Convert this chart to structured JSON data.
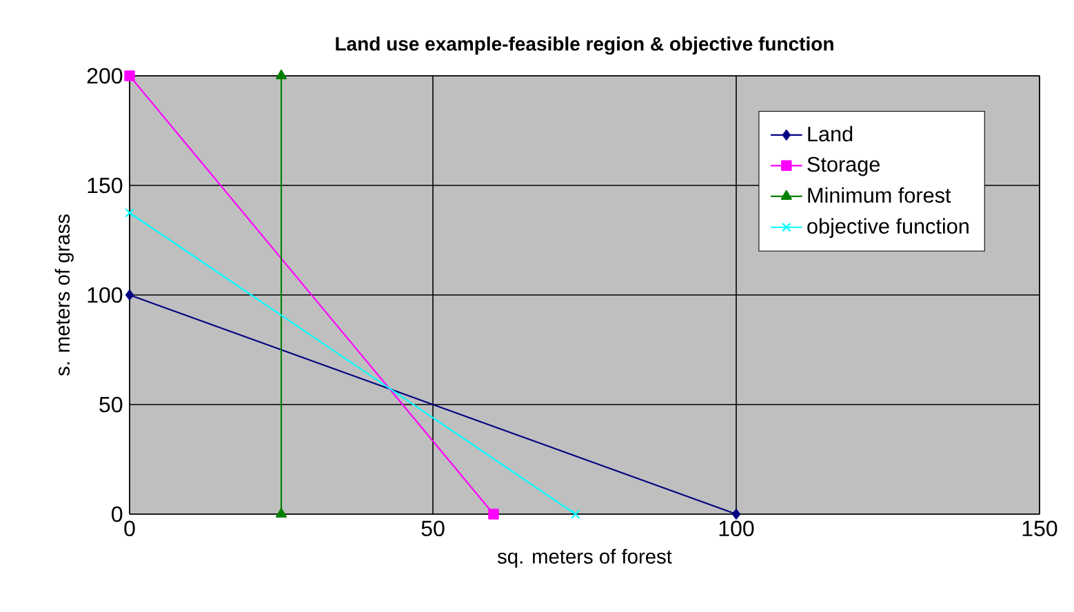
{
  "chart_data": {
    "type": "line",
    "title": "Land use example-feasible region & objective function",
    "xlabel": "sq. meters of forest",
    "ylabel": "s. meters of grass",
    "xlim": [
      0,
      150
    ],
    "ylim": [
      0,
      200
    ],
    "xticks": [
      0,
      50,
      100,
      150
    ],
    "yticks": [
      0,
      50,
      100,
      150,
      200
    ],
    "grid": true,
    "legend": "top right",
    "line_style": "solid",
    "series": [
      {
        "name": "Land",
        "color": "#000080",
        "marker": "diamond",
        "x": [
          0,
          100
        ],
        "values": [
          100,
          0
        ]
      },
      {
        "name": "Storage",
        "color": "#ff00ff",
        "marker": "square",
        "x": [
          0,
          60
        ],
        "values": [
          200,
          0
        ]
      },
      {
        "name": "Minimum forest",
        "color": "#008000",
        "marker": "triangle",
        "x": [
          25,
          25
        ],
        "values": [
          0,
          200
        ]
      },
      {
        "name": "objective function",
        "color": "#00ffff",
        "marker": "cross",
        "x": [
          0,
          73.5
        ],
        "values": [
          137.5,
          0
        ]
      }
    ]
  }
}
